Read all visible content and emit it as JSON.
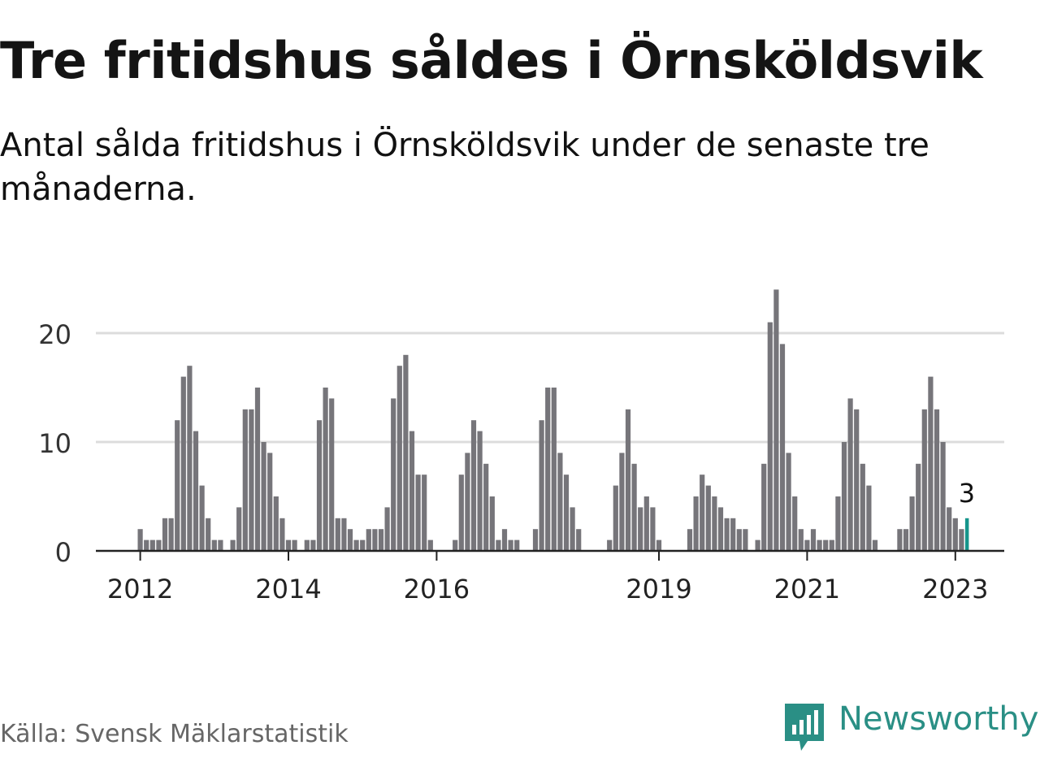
{
  "header": {
    "title": "Tre fritidshus såldes i Örnsköldsvik",
    "subtitle": "Antal sålda fritidshus i Örnsköldsvik under de senaste tre månaderna."
  },
  "footer": {
    "source": "Källa: Svensk Mäklarstatistik",
    "brand": "Newsworthy"
  },
  "colors": {
    "bar": "#76757a",
    "highlight": "#16958b",
    "brand": "#2a8f85",
    "grid": "#dcdcdc",
    "axis": "#222222"
  },
  "chart_data": {
    "type": "bar",
    "title": "Tre fritidshus såldes i Örnsköldsvik",
    "xlabel": "",
    "ylabel": "",
    "ylim": [
      0,
      24
    ],
    "yticks": [
      0,
      10,
      20
    ],
    "grid": true,
    "xtick_labels": [
      "2012",
      "2014",
      "2016",
      "2019",
      "2021",
      "2023"
    ],
    "start": "2012-01",
    "values": [
      2,
      1,
      1,
      1,
      3,
      3,
      12,
      16,
      17,
      11,
      6,
      3,
      1,
      1,
      0,
      1,
      4,
      13,
      13,
      15,
      10,
      9,
      5,
      3,
      1,
      1,
      0,
      1,
      1,
      12,
      15,
      14,
      3,
      3,
      2,
      1,
      1,
      2,
      2,
      2,
      4,
      14,
      17,
      18,
      11,
      7,
      7,
      1,
      0,
      0,
      0,
      1,
      7,
      9,
      12,
      11,
      8,
      5,
      1,
      2,
      1,
      1,
      0,
      0,
      2,
      12,
      15,
      15,
      9,
      7,
      4,
      2,
      0,
      0,
      0,
      0,
      1,
      6,
      9,
      13,
      8,
      4,
      5,
      4,
      1,
      0,
      0,
      0,
      0,
      2,
      5,
      7,
      6,
      5,
      4,
      3,
      3,
      2,
      2,
      0,
      1,
      8,
      21,
      24,
      19,
      9,
      5,
      2,
      1,
      2,
      1,
      1,
      1,
      5,
      10,
      14,
      13,
      8,
      6,
      1,
      0,
      0,
      0,
      2,
      2,
      5,
      8,
      13,
      16,
      13,
      10,
      4,
      3,
      2,
      3
    ],
    "highlight": {
      "label": "3",
      "value": 3,
      "period": "2023-03"
    }
  }
}
